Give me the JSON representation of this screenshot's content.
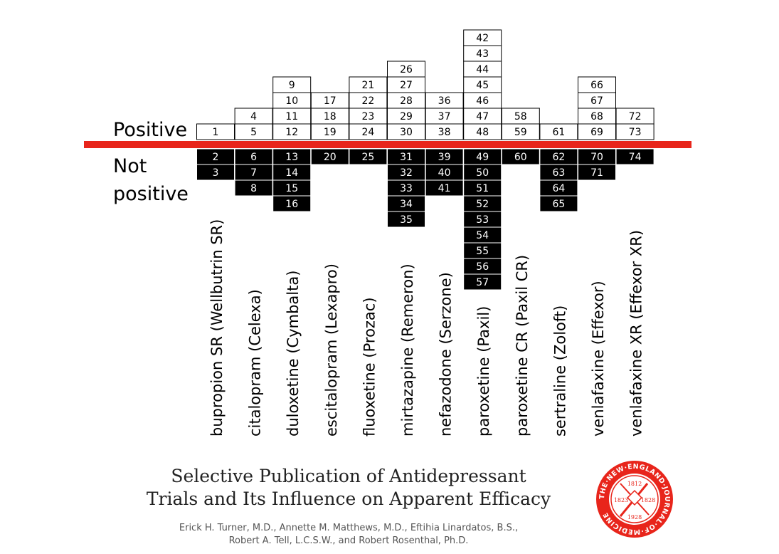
{
  "labels": {
    "positive": "Positive",
    "not_positive": "Not positive"
  },
  "title_line1": "Selective Publication of Antidepressant",
  "title_line2": "Trials and Its Influence on Apparent Efficacy",
  "authors_line1": "Erick H. Turner, M.D., Annette M. Matthews, M.D., Eftihia Linardatos, B.S.,",
  "authors_line2": "Robert A. Tell, L.C.S.W., and Robert Rosenthal, Ph.D.",
  "seal": {
    "ring_text": "THE·NEW·ENGLAND·JOURNAL·OF·MEDICINE",
    "years": [
      "1812",
      "1823",
      "1828",
      "1928"
    ]
  },
  "colors": {
    "divider": "#e8251b",
    "not_positive_cell": "#000000",
    "positive_cell": "#ffffff",
    "seal": "#e8251b"
  },
  "chart_data": {
    "type": "table",
    "categories": [
      "bupropion SR (Wellbutrin SR)",
      "citalopram (Celexa)",
      "duloxetine (Cymbalta)",
      "escitalopram (Lexapro)",
      "fluoxetine (Prozac)",
      "mirtazapine (Remeron)",
      "nefazodone (Serzone)",
      "paroxetine (Paxil)",
      "paroxetine CR (Paxil CR)",
      "sertraline (Zoloft)",
      "venlafaxine (Effexor)",
      "venlafaxine XR (Effexor XR)"
    ],
    "series": [
      {
        "name": "Positive",
        "values": [
          [
            "1"
          ],
          [
            "4",
            "5"
          ],
          [
            "9",
            "10",
            "11",
            "12"
          ],
          [
            "17",
            "18",
            "19"
          ],
          [
            "21",
            "22",
            "23",
            "24"
          ],
          [
            "26",
            "27",
            "28",
            "29",
            "30"
          ],
          [
            "36",
            "37",
            "38"
          ],
          [
            "42",
            "43",
            "44",
            "45",
            "46",
            "47",
            "48"
          ],
          [
            "58",
            "59"
          ],
          [
            "61"
          ],
          [
            "66",
            "67",
            "68",
            "69"
          ],
          [
            "72",
            "73"
          ]
        ]
      },
      {
        "name": "Not positive",
        "values": [
          [
            "2",
            "3"
          ],
          [
            "6",
            "7",
            "8"
          ],
          [
            "13",
            "14",
            "15",
            "16"
          ],
          [
            "20"
          ],
          [
            "25"
          ],
          [
            "31",
            "32",
            "33",
            "34",
            "35"
          ],
          [
            "39",
            "40",
            "41"
          ],
          [
            "49",
            "50",
            "51",
            "52",
            "53",
            "54",
            "55",
            "56",
            "57"
          ],
          [
            "60"
          ],
          [
            "62",
            "63",
            "64",
            "65"
          ],
          [
            "70",
            "71"
          ],
          [
            "74"
          ]
        ]
      }
    ]
  }
}
